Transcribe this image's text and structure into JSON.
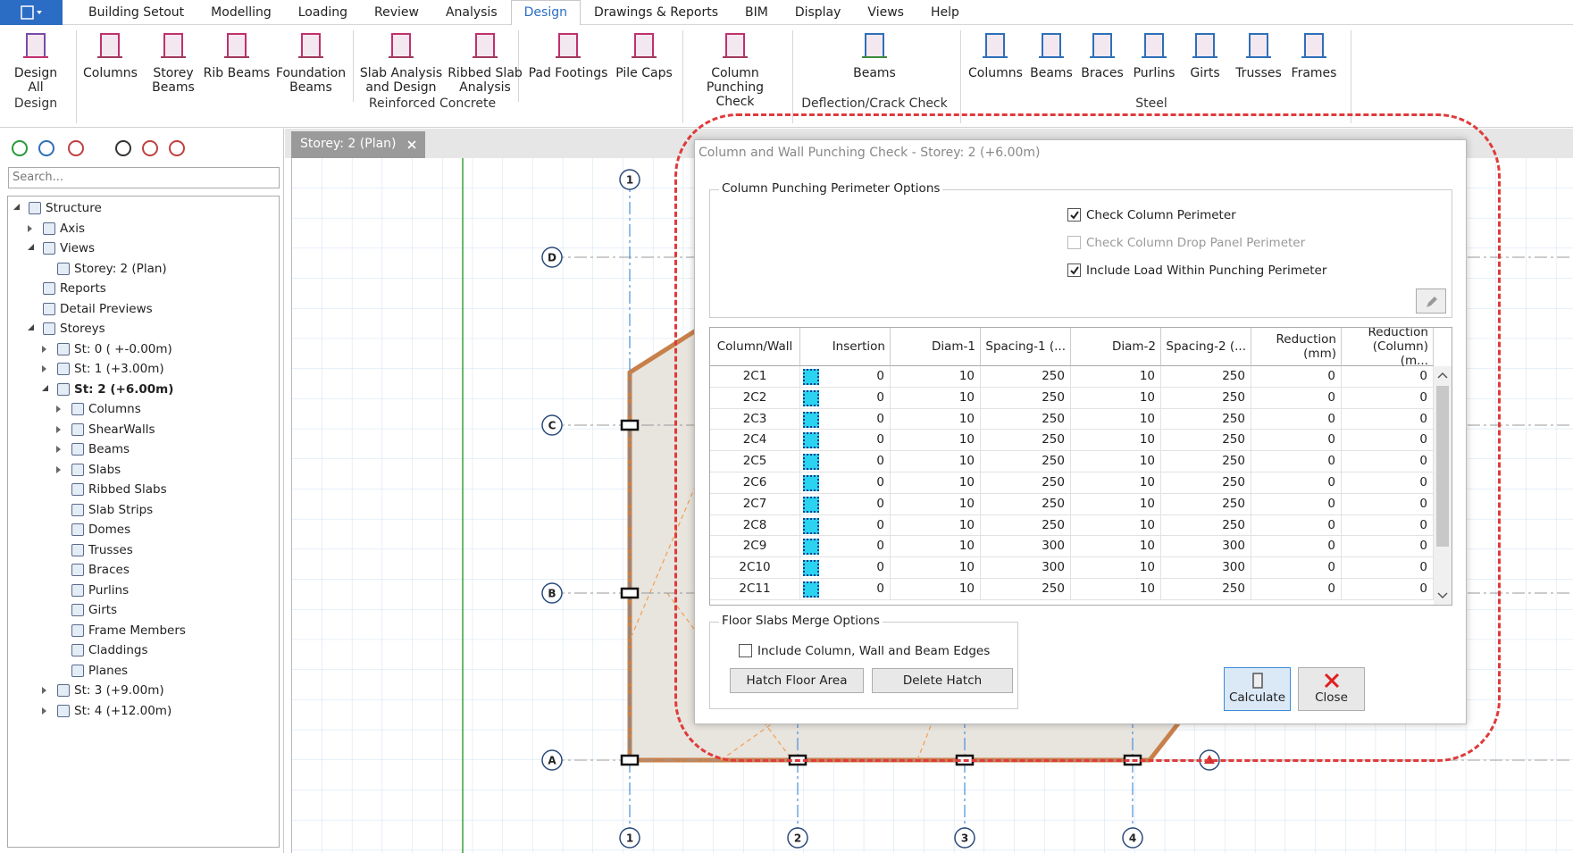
{
  "menu": {
    "tabs": [
      "Building Setout",
      "Modelling",
      "Loading",
      "Review",
      "Analysis",
      "Design",
      "Drawings & Reports",
      "BIM",
      "Display",
      "Views",
      "Help"
    ]
  },
  "ribbon": {
    "groups": [
      {
        "label": "Design",
        "items": [
          "Design All"
        ]
      },
      {
        "label": "Reinforced Concrete",
        "items": [
          "Columns",
          "Storey Beams",
          "Rib Beams",
          "Foundation Beams",
          "Slab Analysis and Design",
          "Ribbed Slab Analysis",
          "Pad Footings",
          "Pile Caps",
          "Column Punching Check"
        ]
      },
      {
        "label": "Deflection/Crack Check",
        "items": [
          "Beams"
        ]
      },
      {
        "label": "Steel",
        "items": [
          "Columns",
          "Beams",
          "Braces",
          "Purlins",
          "Girts",
          "Trusses",
          "Frames"
        ]
      }
    ]
  },
  "left_panel": {
    "search_placeholder": "Search...",
    "tree": [
      {
        "label": "Structure",
        "children": [
          {
            "label": "Axis",
            "collapsed": true
          },
          {
            "label": "Views",
            "children": [
              {
                "label": "Storey: 2 (Plan)"
              }
            ]
          },
          {
            "label": "Reports"
          },
          {
            "label": "Detail Previews"
          },
          {
            "label": "Storeys",
            "children": [
              {
                "label": "St: 0 ( +-0.00m)",
                "collapsed": true
              },
              {
                "label": "St: 1 (+3.00m)",
                "collapsed": true
              },
              {
                "label": "St: 2 (+6.00m)",
                "selected": true,
                "children": [
                  {
                    "label": "Columns",
                    "collapsed": true
                  },
                  {
                    "label": "ShearWalls",
                    "collapsed": true
                  },
                  {
                    "label": "Beams",
                    "collapsed": true
                  },
                  {
                    "label": "Slabs",
                    "collapsed": true
                  },
                  {
                    "label": "Ribbed Slabs"
                  },
                  {
                    "label": "Slab Strips"
                  },
                  {
                    "label": "Domes"
                  },
                  {
                    "label": "Trusses"
                  },
                  {
                    "label": "Braces"
                  },
                  {
                    "label": "Purlins"
                  },
                  {
                    "label": "Girts"
                  },
                  {
                    "label": "Frame Members"
                  },
                  {
                    "label": "Claddings"
                  },
                  {
                    "label": "Planes"
                  }
                ]
              },
              {
                "label": "St: 3 (+9.00m)",
                "collapsed": true
              },
              {
                "label": "St: 4 (+12.00m)",
                "collapsed": true
              }
            ]
          }
        ]
      }
    ]
  },
  "canvas": {
    "tab": "Storey: 2 (Plan)",
    "grid_rows": [
      "A",
      "B",
      "C",
      "D"
    ],
    "grid_columns": [
      "1",
      "2",
      "3",
      "4"
    ]
  },
  "dialog": {
    "title": "Column and Wall Punching Check - Storey: 2 (+6.00m)",
    "perimeter_group": {
      "label": "Column Punching Perimeter Options",
      "options": [
        {
          "label": "Check Column Perimeter",
          "checked": true,
          "enabled": true
        },
        {
          "label": "Check Column Drop Panel Perimeter",
          "checked": false,
          "enabled": false
        },
        {
          "label": "Include Load Within Punching Perimeter",
          "checked": true,
          "enabled": true
        }
      ]
    },
    "table": {
      "columns": [
        "Column/Wall",
        "Insertion",
        "Diam-1",
        "Spacing-1 (...",
        "Diam-2",
        "Spacing-2 (...",
        "Reduction (mm)",
        "Reduction (Column) (m..."
      ],
      "rows": [
        [
          "2C1",
          0,
          10,
          250,
          10,
          250,
          0,
          0
        ],
        [
          "2C2",
          0,
          10,
          250,
          10,
          250,
          0,
          0
        ],
        [
          "2C3",
          0,
          10,
          250,
          10,
          250,
          0,
          0
        ],
        [
          "2C4",
          0,
          10,
          250,
          10,
          250,
          0,
          0
        ],
        [
          "2C5",
          0,
          10,
          250,
          10,
          250,
          0,
          0
        ],
        [
          "2C6",
          0,
          10,
          250,
          10,
          250,
          0,
          0
        ],
        [
          "2C7",
          0,
          10,
          250,
          10,
          250,
          0,
          0
        ],
        [
          "2C8",
          0,
          10,
          250,
          10,
          250,
          0,
          0
        ],
        [
          "2C9",
          0,
          10,
          300,
          10,
          300,
          0,
          0
        ],
        [
          "2C10",
          0,
          10,
          300,
          10,
          300,
          0,
          0
        ],
        [
          "2C11",
          0,
          10,
          250,
          10,
          250,
          0,
          0
        ]
      ]
    },
    "merge_group": {
      "label": "Floor Slabs Merge Options",
      "option": {
        "label": "Include Column, Wall and Beam Edges",
        "checked": false
      },
      "buttons": [
        "Hatch Floor Area",
        "Delete Hatch"
      ]
    },
    "buttons": [
      "Calculate",
      "Close"
    ]
  }
}
